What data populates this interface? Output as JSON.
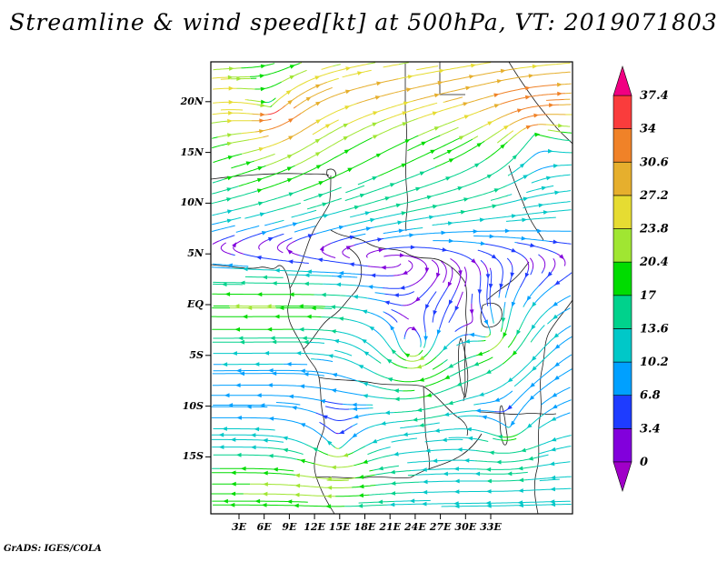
{
  "title": "Streamline & wind speed[kt] at 500hPa, VT: 2019071803",
  "credit": "GrADS: IGES/COLA",
  "chart_data": {
    "type": "streamline",
    "title": "Streamline & wind speed[kt] at 500hPa, VT: 2019071803",
    "variable": "wind speed",
    "units": "kt",
    "pressure_level": "500hPa",
    "valid_time": "2019071803",
    "grid": false,
    "legend_position": "right",
    "x_ticks": [
      {
        "label": "3E",
        "lon": 3
      },
      {
        "label": "6E",
        "lon": 6
      },
      {
        "label": "9E",
        "lon": 9
      },
      {
        "label": "12E",
        "lon": 12
      },
      {
        "label": "15E",
        "lon": 15
      },
      {
        "label": "18E",
        "lon": 18
      },
      {
        "label": "21E",
        "lon": 21
      },
      {
        "label": "24E",
        "lon": 24
      },
      {
        "label": "27E",
        "lon": 27
      },
      {
        "label": "30E",
        "lon": 30
      },
      {
        "label": "33E",
        "lon": 33
      }
    ],
    "y_ticks": [
      {
        "label": "20N",
        "lat": 20
      },
      {
        "label": "15N",
        "lat": 15
      },
      {
        "label": "10N",
        "lat": 10
      },
      {
        "label": "5N",
        "lat": 5
      },
      {
        "label": "EQ",
        "lat": 0
      },
      {
        "label": "5S",
        "lat": -5
      },
      {
        "label": "10S",
        "lat": -10
      },
      {
        "label": "15S",
        "lat": -15
      }
    ],
    "colorbar": {
      "orientation": "vertical",
      "position": "right",
      "levels": [
        0,
        3.4,
        6.8,
        10.2,
        13.6,
        17,
        20.4,
        23.8,
        27.2,
        30.6,
        34,
        37.4
      ],
      "labels": [
        "0",
        "3.4",
        "6.8",
        "10.2",
        "13.6",
        "17",
        "20.4",
        "23.8",
        "27.2",
        "30.6",
        "34",
        "37.4"
      ],
      "interval_colors": [
        "#8200DC",
        "#1E3CFF",
        "#00A0FF",
        "#00C8C8",
        "#00D28C",
        "#00DC00",
        "#A0E632",
        "#E6DC32",
        "#E6AF2D",
        "#F08228",
        "#FA3C3C"
      ],
      "below_color": "#A000C8",
      "above_color": "#F00082"
    }
  }
}
